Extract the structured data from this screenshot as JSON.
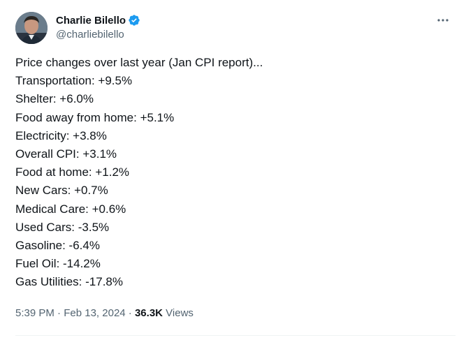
{
  "author": {
    "display_name": "Charlie Bilello",
    "handle": "@charliebilello",
    "verified": true,
    "verified_color": "#1d9bf0"
  },
  "menu": {
    "more_icon": "more-horizontal-icon"
  },
  "tweet": {
    "lines": [
      "Price changes over last year (Jan CPI report)...",
      "Transportation: +9.5%",
      "Shelter: +6.0%",
      "Food away from home: +5.1%",
      "Electricity: +3.8%",
      "Overall CPI: +3.1%",
      "Food at home: +1.2%",
      "New Cars: +0.7%",
      "Medical Care: +0.6%",
      "Used Cars: -3.5%",
      "Gasoline: -6.4%",
      "Fuel Oil: -14.2%",
      "Gas Utilities: -17.8%"
    ]
  },
  "meta": {
    "time": "5:39 PM",
    "separator": "·",
    "date": "Feb 13, 2024",
    "views_count": "36.3K",
    "views_label": "Views"
  }
}
